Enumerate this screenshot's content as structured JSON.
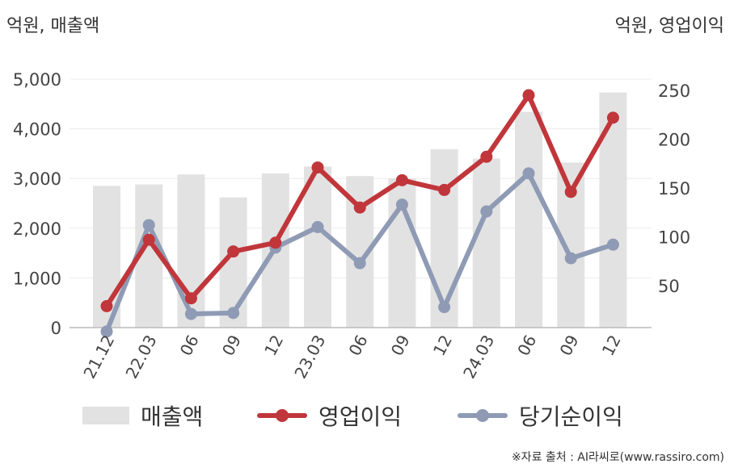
{
  "left_unit": "억원, 매출액",
  "right_unit": "억원, 영업이익",
  "source": "※자료 출처 : AI라씨로(www.rassiro.com)",
  "chart_data": {
    "type": "bar+line",
    "categories": [
      "21.12",
      "22.03",
      "06",
      "09",
      "12",
      "23.03",
      "06",
      "09",
      "12",
      "24.03",
      "06",
      "09",
      "12"
    ],
    "y_left": {
      "min": 0,
      "max": 5000,
      "ticks": [
        0,
        1000,
        2000,
        3000,
        4000,
        5000
      ],
      "tick_labels": [
        "0",
        "1,000",
        "2,000",
        "3,000",
        "4,000",
        "5,000"
      ]
    },
    "y_right": {
      "ticks": [
        50,
        100,
        150,
        200,
        250
      ],
      "tick_labels": [
        "50",
        "100",
        "150",
        "200",
        "250"
      ]
    },
    "grid": true,
    "legend_position": "bottom",
    "series": [
      {
        "name": "매출액",
        "type": "bar",
        "axis": "left",
        "color": "#e2e2e2",
        "values": [
          2850,
          2880,
          3080,
          2620,
          3100,
          3240,
          3050,
          3000,
          3590,
          3400,
          4340,
          3320,
          4730
        ]
      },
      {
        "name": "영업이익",
        "type": "line",
        "axis": "right",
        "color": "#c0363a",
        "values": [
          29,
          97,
          37,
          85,
          94,
          171,
          130,
          158,
          148,
          182,
          245,
          146,
          222
        ]
      },
      {
        "name": "당기순이익",
        "type": "line",
        "axis": "right",
        "color": "#8f9bb5",
        "values": [
          3,
          112,
          21,
          22,
          89,
          110,
          73,
          133,
          28,
          126,
          165,
          78,
          92
        ]
      }
    ]
  }
}
